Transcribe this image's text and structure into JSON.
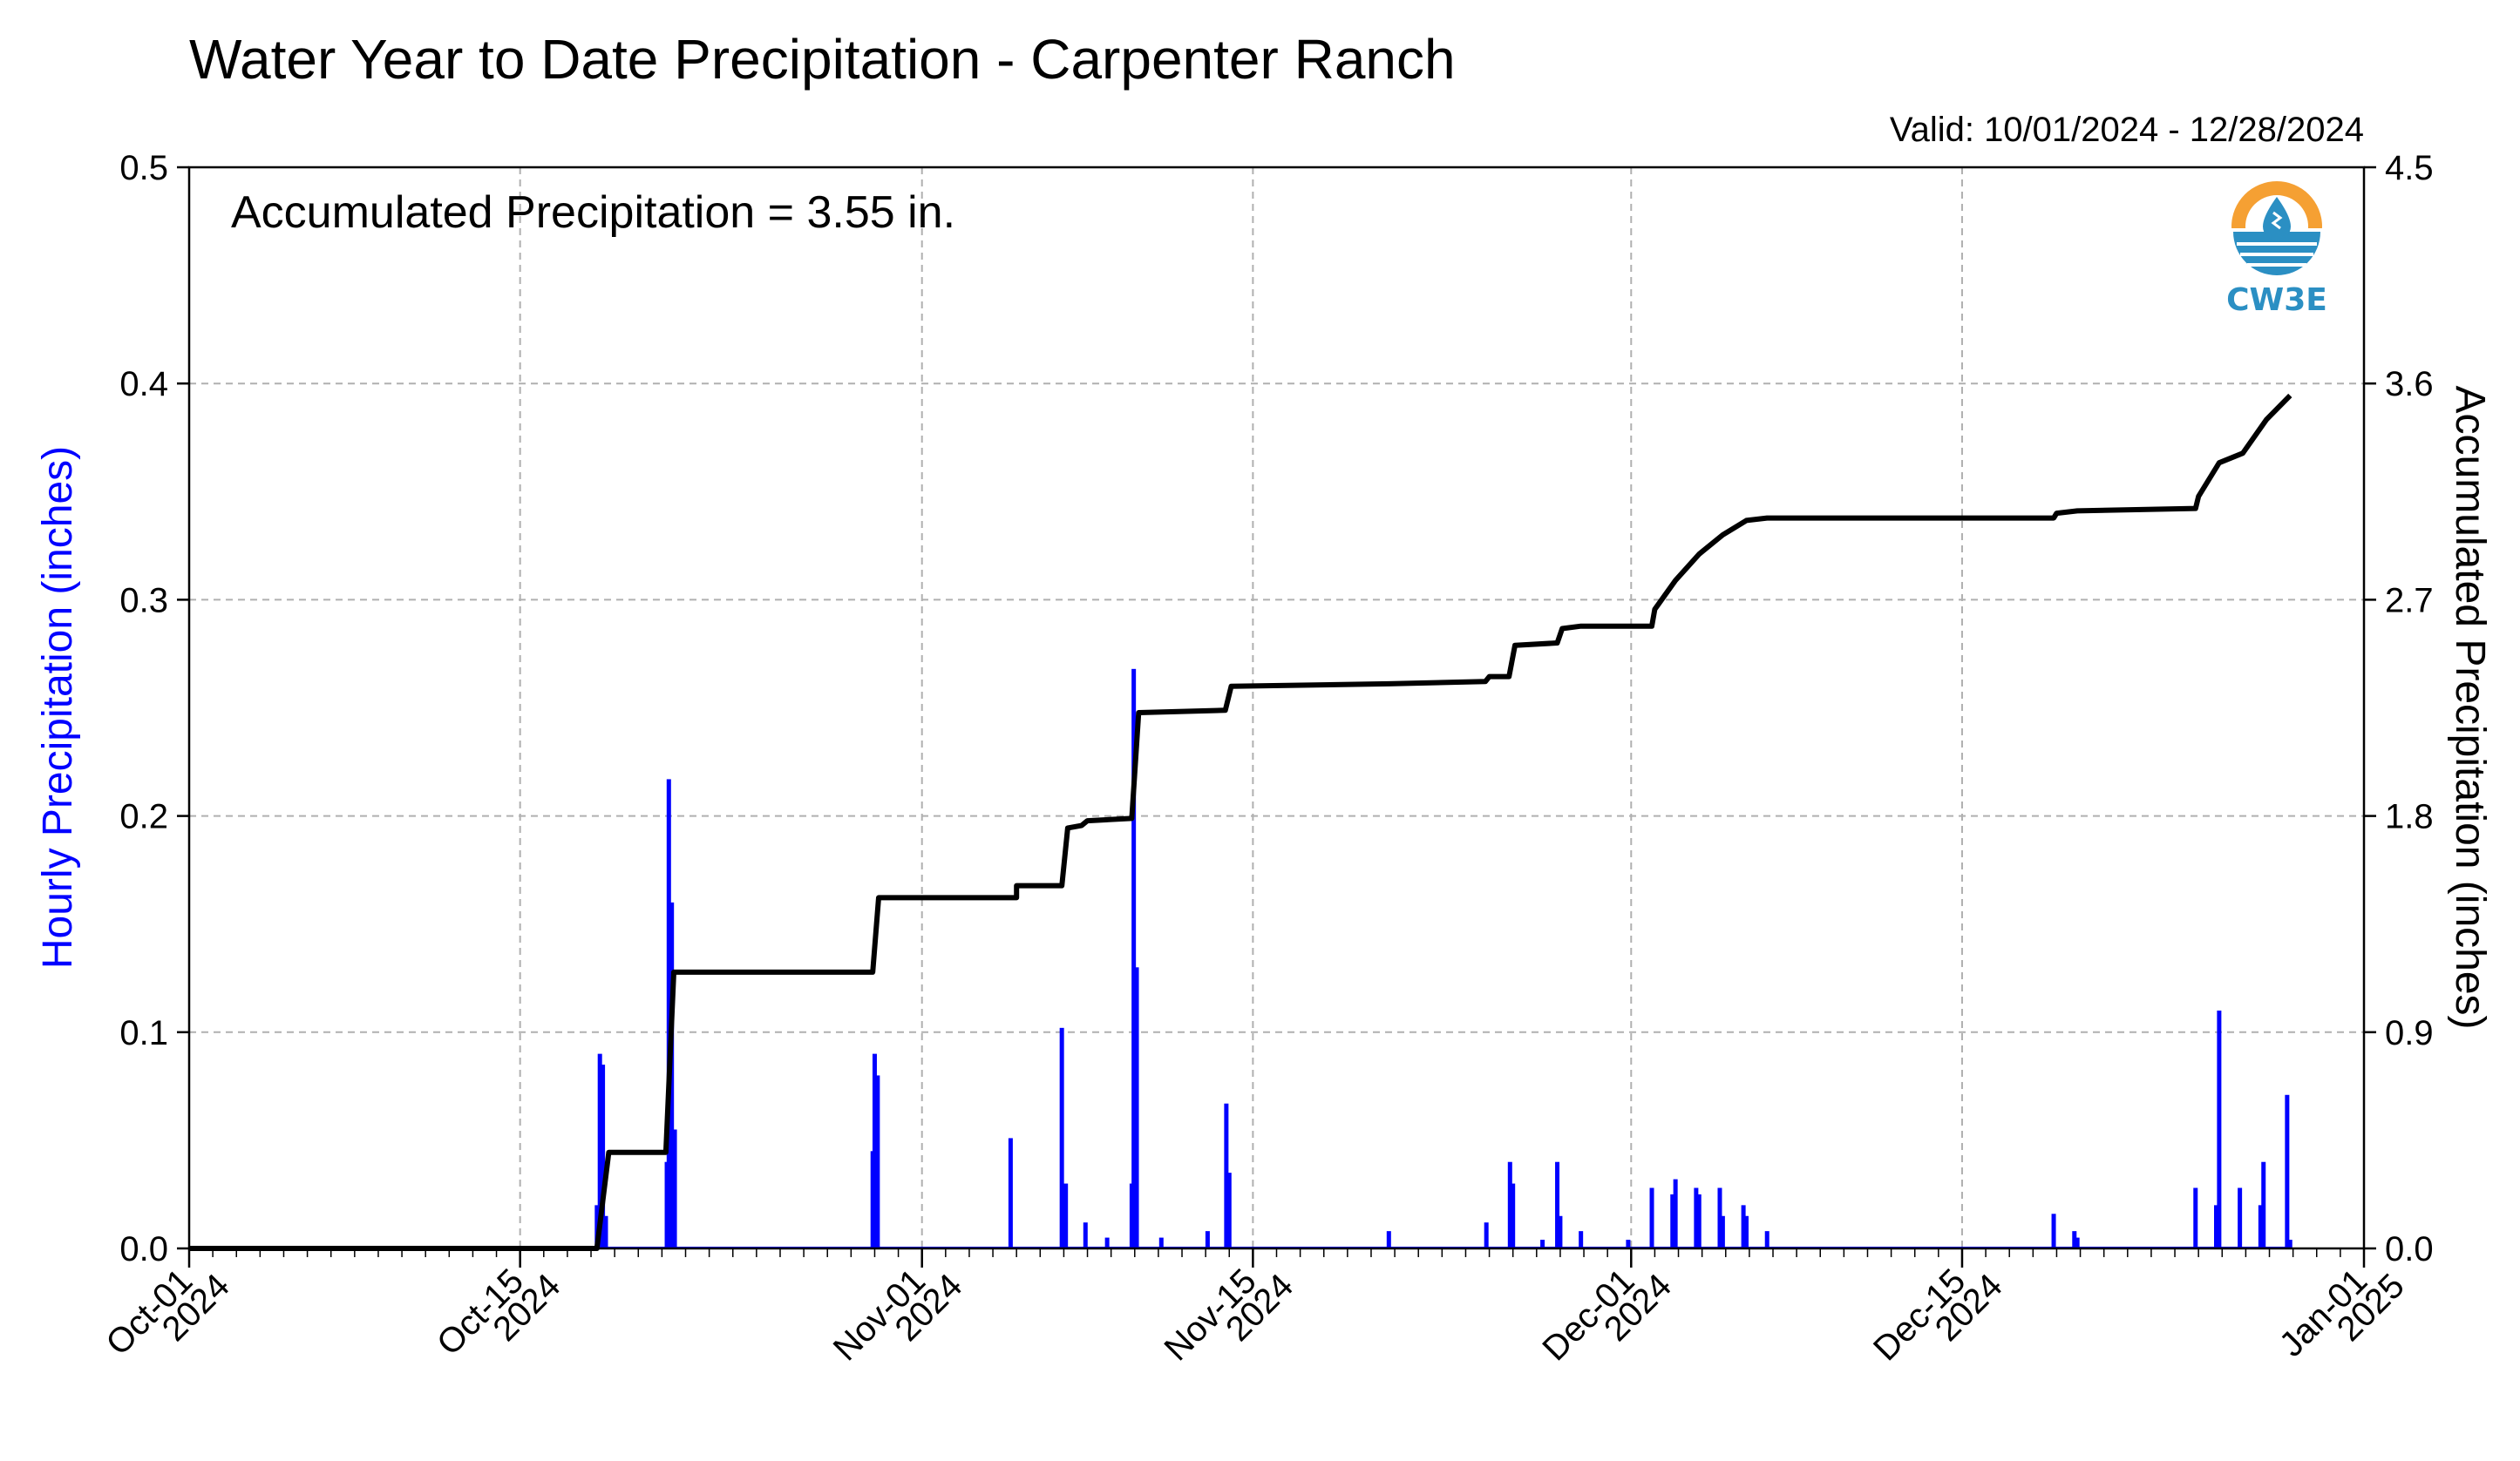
{
  "colors": {
    "hourly_bars": "#0000ff",
    "accumulated_line": "#000000",
    "grid": "#b0b0b0",
    "logo_orange": "#f5a033",
    "logo_blue": "#2b8fc3"
  },
  "logo": {
    "text": "CW3E",
    "icon": "water-drop-logo-icon"
  },
  "chart_data": {
    "type": "bar",
    "title": "Water Year to Date Precipitation - Carpenter Ranch",
    "subtitle": "Valid: 10/01/2024 - 12/28/2024",
    "annotation": "Accumulated Precipitation = 3.55 in.",
    "ylabel": "Hourly Precipitation (inches)",
    "y2label": "Accumulated Precipitation (inches)",
    "ylim": [
      0,
      0.5
    ],
    "y2lim": [
      0,
      4.5
    ],
    "xlim": [
      "2024-10-01",
      "2025-01-01"
    ],
    "yticks": [
      "0.0",
      "0.1",
      "0.2",
      "0.3",
      "0.4",
      "0.5"
    ],
    "y2ticks": [
      "0.0",
      "0.9",
      "1.8",
      "2.7",
      "3.6",
      "4.5"
    ],
    "xticks": [
      {
        "date": "2024-10-01",
        "line1": "Oct-01",
        "line2": "2024"
      },
      {
        "date": "2024-10-15",
        "line1": "Oct-15",
        "line2": "2024"
      },
      {
        "date": "2024-11-01",
        "line1": "Nov-01",
        "line2": "2024"
      },
      {
        "date": "2024-11-15",
        "line1": "Nov-15",
        "line2": "2024"
      },
      {
        "date": "2024-12-01",
        "line1": "Dec-01",
        "line2": "2024"
      },
      {
        "date": "2024-12-15",
        "line1": "Dec-15",
        "line2": "2024"
      },
      {
        "date": "2025-01-01",
        "line1": "Jan-01",
        "line2": "2025"
      }
    ],
    "grid": true,
    "series": [
      {
        "name": "Hourly Precipitation (inches)",
        "type": "bar",
        "axis": "left",
        "points": [
          [
            "2024-10-18 06:00",
            0.02
          ],
          [
            "2024-10-18 09:00",
            0.09
          ],
          [
            "2024-10-18 12:00",
            0.085
          ],
          [
            "2024-10-18 15:00",
            0.015
          ],
          [
            "2024-10-21 05:00",
            0.04
          ],
          [
            "2024-10-21 07:00",
            0.217
          ],
          [
            "2024-10-21 10:00",
            0.16
          ],
          [
            "2024-10-21 13:00",
            0.055
          ],
          [
            "2024-10-29 22:00",
            0.045
          ],
          [
            "2024-10-30 00:00",
            0.09
          ],
          [
            "2024-10-30 03:00",
            0.08
          ],
          [
            "2024-11-04 18:00",
            0.051
          ],
          [
            "2024-11-06 22:00",
            0.102
          ],
          [
            "2024-11-07 02:00",
            0.03
          ],
          [
            "2024-11-07 22:00",
            0.012
          ],
          [
            "2024-11-08 20:00",
            0.005
          ],
          [
            "2024-11-09 21:00",
            0.03
          ],
          [
            "2024-11-09 23:00",
            0.268
          ],
          [
            "2024-11-10 02:00",
            0.13
          ],
          [
            "2024-11-11 03:00",
            0.005
          ],
          [
            "2024-11-13 02:00",
            0.008
          ],
          [
            "2024-11-13 21:00",
            0.067
          ],
          [
            "2024-11-14 00:00",
            0.035
          ],
          [
            "2024-11-20 18:00",
            0.008
          ],
          [
            "2024-11-24 21:00",
            0.012
          ],
          [
            "2024-11-25 21:00",
            0.04
          ],
          [
            "2024-11-26 00:00",
            0.03
          ],
          [
            "2024-11-27 06:00",
            0.004
          ],
          [
            "2024-11-27 21:00",
            0.04
          ],
          [
            "2024-11-28 00:00",
            0.015
          ],
          [
            "2024-11-28 21:00",
            0.008
          ],
          [
            "2024-11-30 21:00",
            0.004
          ],
          [
            "2024-12-01 21:00",
            0.028
          ],
          [
            "2024-12-02 18:00",
            0.025
          ],
          [
            "2024-12-02 21:00",
            0.032
          ],
          [
            "2024-12-03 18:00",
            0.028
          ],
          [
            "2024-12-03 21:00",
            0.025
          ],
          [
            "2024-12-04 18:00",
            0.028
          ],
          [
            "2024-12-04 21:00",
            0.015
          ],
          [
            "2024-12-05 18:00",
            0.02
          ],
          [
            "2024-12-05 21:00",
            0.015
          ],
          [
            "2024-12-06 18:00",
            0.008
          ],
          [
            "2024-12-18 21:00",
            0.016
          ],
          [
            "2024-12-19 18:00",
            0.008
          ],
          [
            "2024-12-19 21:00",
            0.005
          ],
          [
            "2024-12-24 21:00",
            0.028
          ],
          [
            "2024-12-25 18:00",
            0.02
          ],
          [
            "2024-12-25 21:00",
            0.11
          ],
          [
            "2024-12-26 18:00",
            0.028
          ],
          [
            "2024-12-27 15:00",
            0.02
          ],
          [
            "2024-12-27 18:00",
            0.04
          ],
          [
            "2024-12-28 18:00",
            0.071
          ],
          [
            "2024-12-28 21:00",
            0.004
          ]
        ]
      },
      {
        "name": "Accumulated Precipitation (inches)",
        "type": "step-line",
        "axis": "right",
        "points": [
          [
            "2024-10-01 00:00",
            0.0
          ],
          [
            "2024-10-18 06:00",
            0.0
          ],
          [
            "2024-10-18 12:00",
            0.2
          ],
          [
            "2024-10-18 18:00",
            0.4
          ],
          [
            "2024-10-21 04:00",
            0.4
          ],
          [
            "2024-10-21 12:00",
            1.15
          ],
          [
            "2024-10-29 22:00",
            1.15
          ],
          [
            "2024-10-30 04:00",
            1.46
          ],
          [
            "2024-11-05 00:00",
            1.46
          ],
          [
            "2024-11-05 00:00",
            1.51
          ],
          [
            "2024-11-06 22:00",
            1.51
          ],
          [
            "2024-11-07 04:00",
            1.75
          ],
          [
            "2024-11-07 18:00",
            1.76
          ],
          [
            "2024-11-08 00:00",
            1.78
          ],
          [
            "2024-11-09 21:00",
            1.79
          ],
          [
            "2024-11-10 04:00",
            2.23
          ],
          [
            "2024-11-13 20:00",
            2.24
          ],
          [
            "2024-11-14 02:00",
            2.34
          ],
          [
            "2024-11-20 18:00",
            2.35
          ],
          [
            "2024-11-24 20:00",
            2.36
          ],
          [
            "2024-11-25 00:00",
            2.38
          ],
          [
            "2024-11-25 20:00",
            2.38
          ],
          [
            "2024-11-26 02:00",
            2.51
          ],
          [
            "2024-11-27 21:00",
            2.52
          ],
          [
            "2024-11-28 02:00",
            2.58
          ],
          [
            "2024-11-28 21:00",
            2.59
          ],
          [
            "2024-12-01 21:00",
            2.59
          ],
          [
            "2024-12-02 00:00",
            2.66
          ],
          [
            "2024-12-02 21:00",
            2.78
          ],
          [
            "2024-12-03 21:00",
            2.89
          ],
          [
            "2024-12-04 21:00",
            2.97
          ],
          [
            "2024-12-05 21:00",
            3.03
          ],
          [
            "2024-12-06 18:00",
            3.04
          ],
          [
            "2024-12-18 21:00",
            3.04
          ],
          [
            "2024-12-19 00:00",
            3.06
          ],
          [
            "2024-12-19 21:00",
            3.07
          ],
          [
            "2024-12-24 21:00",
            3.08
          ],
          [
            "2024-12-25 00:00",
            3.13
          ],
          [
            "2024-12-25 21:00",
            3.27
          ],
          [
            "2024-12-26 21:00",
            3.31
          ],
          [
            "2024-12-27 21:00",
            3.45
          ],
          [
            "2024-12-28 21:00",
            3.55
          ]
        ]
      }
    ]
  }
}
